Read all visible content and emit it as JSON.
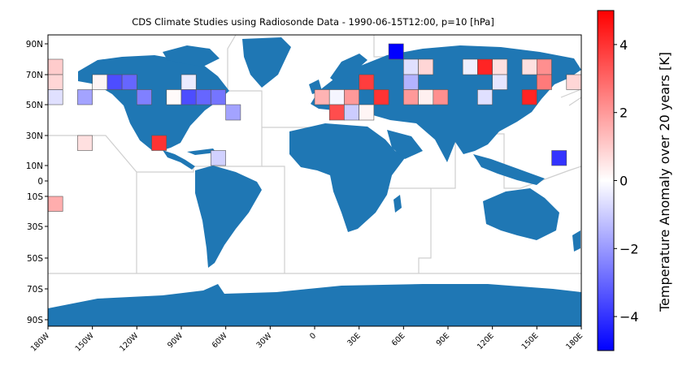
{
  "chart_data": {
    "type": "heatmap",
    "title": "CDS Climate Studies using Radiosonde Data - 1990-06-15T12:00, p=10 [hPa]",
    "x_ticks": [
      "180W",
      "150W",
      "120W",
      "90W",
      "60W",
      "30W",
      "0",
      "30E",
      "60E",
      "90E",
      "120E",
      "150E",
      "180E"
    ],
    "y_ticks": [
      "90N",
      "70N",
      "50N",
      "30N",
      "10N",
      "0",
      "10S",
      "30S",
      "50S",
      "70S",
      "90S"
    ],
    "colorbar": {
      "label": "Temperature Anomaly over 20 years [K]",
      "ticks": [
        "4",
        "2",
        "0",
        "−2",
        "−4"
      ],
      "vmin": -5,
      "vmax": 5,
      "colormap": "bwr"
    },
    "colors": {
      "land": "#1f77b4",
      "cell_border": "#555555",
      "boundary": "#cfcfcf"
    },
    "cells": [
      {
        "lon": -175,
        "lat": 75,
        "value": 1.0
      },
      {
        "lon": -175,
        "lat": 65,
        "value": 0.8
      },
      {
        "lon": -175,
        "lat": 55,
        "value": -0.6
      },
      {
        "lon": -175,
        "lat": -15,
        "value": 1.6
      },
      {
        "lon": -155,
        "lat": 55,
        "value": -1.8
      },
      {
        "lon": -155,
        "lat": 25,
        "value": 0.6
      },
      {
        "lon": -145,
        "lat": 65,
        "value": 0.2
      },
      {
        "lon": -135,
        "lat": 65,
        "value": -3.5
      },
      {
        "lon": -125,
        "lat": 65,
        "value": -3.0
      },
      {
        "lon": -115,
        "lat": 55,
        "value": -2.5
      },
      {
        "lon": -105,
        "lat": 25,
        "value": 4.0
      },
      {
        "lon": -95,
        "lat": 55,
        "value": 0.1
      },
      {
        "lon": -85,
        "lat": 65,
        "value": -0.4
      },
      {
        "lon": -85,
        "lat": 55,
        "value": -3.5
      },
      {
        "lon": -75,
        "lat": 55,
        "value": -3.0
      },
      {
        "lon": -65,
        "lat": 55,
        "value": -2.7
      },
      {
        "lon": -65,
        "lat": 15,
        "value": -0.9
      },
      {
        "lon": -55,
        "lat": 45,
        "value": -1.8
      },
      {
        "lon": 5,
        "lat": 55,
        "value": 1.5
      },
      {
        "lon": 15,
        "lat": 55,
        "value": -0.2
      },
      {
        "lon": 15,
        "lat": 45,
        "value": 3.5
      },
      {
        "lon": 25,
        "lat": 55,
        "value": 2.0
      },
      {
        "lon": 25,
        "lat": 45,
        "value": -1.0
      },
      {
        "lon": 35,
        "lat": 45,
        "value": 0.2
      },
      {
        "lon": 35,
        "lat": 65,
        "value": 3.8
      },
      {
        "lon": 45,
        "lat": 55,
        "value": 4.0
      },
      {
        "lon": 55,
        "lat": 85,
        "value": -5.0
      },
      {
        "lon": 65,
        "lat": 75,
        "value": -0.6
      },
      {
        "lon": 65,
        "lat": 65,
        "value": -1.5
      },
      {
        "lon": 65,
        "lat": 55,
        "value": 2.0
      },
      {
        "lon": 75,
        "lat": 75,
        "value": 0.8
      },
      {
        "lon": 75,
        "lat": 55,
        "value": 0.3
      },
      {
        "lon": 85,
        "lat": 55,
        "value": 2.2
      },
      {
        "lon": 105,
        "lat": 75,
        "value": -0.3
      },
      {
        "lon": 115,
        "lat": 75,
        "value": 4.3
      },
      {
        "lon": 115,
        "lat": 55,
        "value": -0.6
      },
      {
        "lon": 125,
        "lat": 75,
        "value": 0.6
      },
      {
        "lon": 125,
        "lat": 65,
        "value": -0.5
      },
      {
        "lon": 145,
        "lat": 75,
        "value": 0.6
      },
      {
        "lon": 145,
        "lat": 55,
        "value": 4.3
      },
      {
        "lon": 155,
        "lat": 75,
        "value": 2.2
      },
      {
        "lon": 155,
        "lat": 65,
        "value": 2.6
      },
      {
        "lon": 165,
        "lat": 15,
        "value": -4.0
      },
      {
        "lon": 175,
        "lat": 65,
        "value": 0.8
      }
    ]
  }
}
